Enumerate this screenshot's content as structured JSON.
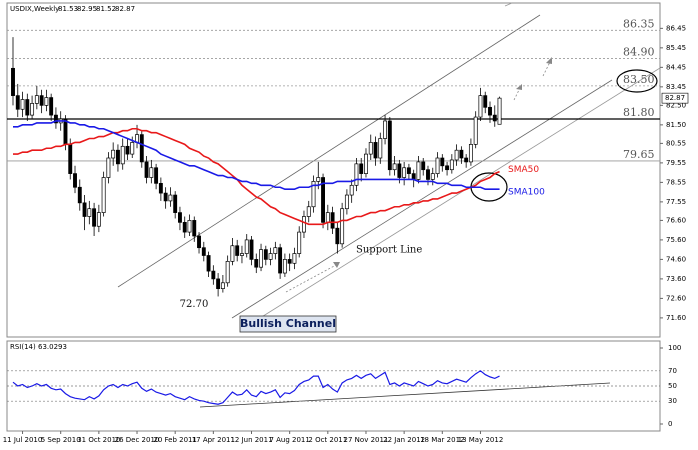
{
  "chart_data": {
    "type": "candlestick",
    "title": "USDIX,Weekly",
    "x": [
      null,
      null,
      "11 Jul 2010",
      null,
      null,
      null,
      null,
      null,
      null,
      null,
      "5 Sep 2010",
      null,
      null,
      null,
      null,
      null,
      null,
      null,
      "31 Oct 2010",
      null,
      null,
      null,
      null,
      null,
      null,
      null,
      "26 Dec 2010",
      null,
      null,
      null,
      null,
      null,
      null,
      null,
      "20 Feb 2011",
      null,
      null,
      null,
      null,
      null,
      null,
      null,
      "17 Apr 2011",
      null,
      null,
      null,
      null,
      null,
      null,
      null,
      "12 Jun 2011",
      null,
      null,
      null,
      null,
      null,
      null,
      null,
      "7 Aug 2011",
      null,
      null,
      null,
      null,
      null,
      null,
      null,
      "2 Oct 2011",
      null,
      null,
      null,
      null,
      null,
      null,
      null,
      "27 Nov 2011",
      null,
      null,
      null,
      null,
      null,
      null,
      null,
      "22 Jan 2012",
      null,
      null,
      null,
      null,
      null,
      null,
      null,
      "18 Mar 2012",
      null,
      null,
      null,
      null,
      null,
      null,
      null,
      "13 May 2012",
      null,
      null,
      null,
      null
    ],
    "candles": [
      [
        84.4,
        86.0,
        82.5,
        83.0
      ],
      [
        83.0,
        83.6,
        81.9,
        82.3
      ],
      [
        82.3,
        83.2,
        81.9,
        82.8
      ],
      [
        82.8,
        83.1,
        81.7,
        82.0
      ],
      [
        82.0,
        83.0,
        81.8,
        82.6
      ],
      [
        82.6,
        83.5,
        82.3,
        83.0
      ],
      [
        83.0,
        83.3,
        82.1,
        82.5
      ],
      [
        82.5,
        83.3,
        82.2,
        82.9
      ],
      [
        82.9,
        83.1,
        81.7,
        82.0
      ],
      [
        82.0,
        82.4,
        81.3,
        81.6
      ],
      [
        81.6,
        82.2,
        81.2,
        81.8
      ],
      [
        81.8,
        82.0,
        80.2,
        80.5
      ],
      [
        80.5,
        80.8,
        78.7,
        79.0
      ],
      [
        79.0,
        79.4,
        78.0,
        78.3
      ],
      [
        78.3,
        78.7,
        77.1,
        77.5
      ],
      [
        77.5,
        77.9,
        76.1,
        76.8
      ],
      [
        76.8,
        77.6,
        76.4,
        77.2
      ],
      [
        77.2,
        77.5,
        75.8,
        76.3
      ],
      [
        76.3,
        77.4,
        76.0,
        77.0
      ],
      [
        77.0,
        79.1,
        76.8,
        78.8
      ],
      [
        78.8,
        80.1,
        78.5,
        79.8
      ],
      [
        79.8,
        80.6,
        79.4,
        80.2
      ],
      [
        80.2,
        80.5,
        79.1,
        79.5
      ],
      [
        79.5,
        80.8,
        79.2,
        80.4
      ],
      [
        80.4,
        80.8,
        79.7,
        80.0
      ],
      [
        80.0,
        80.9,
        79.8,
        80.6
      ],
      [
        80.6,
        81.5,
        80.3,
        81.0
      ],
      [
        81.0,
        81.2,
        79.3,
        79.6
      ],
      [
        79.6,
        79.9,
        78.5,
        78.8
      ],
      [
        78.8,
        79.7,
        78.5,
        79.3
      ],
      [
        79.3,
        79.5,
        78.2,
        78.5
      ],
      [
        78.5,
        78.8,
        77.6,
        78.0
      ],
      [
        78.0,
        78.3,
        77.2,
        77.6
      ],
      [
        77.6,
        78.3,
        77.3,
        77.9
      ],
      [
        77.9,
        78.1,
        76.7,
        77.0
      ],
      [
        77.0,
        77.3,
        76.1,
        76.5
      ],
      [
        76.5,
        76.8,
        75.7,
        76.0
      ],
      [
        76.0,
        76.9,
        75.8,
        76.6
      ],
      [
        76.6,
        76.8,
        75.5,
        75.8
      ],
      [
        75.8,
        76.0,
        74.9,
        75.2
      ],
      [
        75.2,
        75.5,
        74.5,
        74.8
      ],
      [
        74.8,
        75.0,
        73.7,
        74.0
      ],
      [
        74.0,
        74.3,
        73.3,
        73.6
      ],
      [
        73.6,
        73.9,
        72.7,
        73.1
      ],
      [
        73.1,
        73.8,
        72.9,
        73.4
      ],
      [
        73.4,
        74.8,
        73.2,
        74.5
      ],
      [
        74.5,
        75.7,
        74.3,
        75.3
      ],
      [
        75.3,
        75.6,
        74.5,
        74.8
      ],
      [
        74.8,
        75.3,
        74.4,
        74.9
      ],
      [
        74.9,
        75.9,
        74.7,
        75.6
      ],
      [
        75.6,
        75.8,
        74.3,
        74.6
      ],
      [
        74.6,
        74.9,
        73.9,
        74.2
      ],
      [
        74.2,
        75.4,
        74.0,
        75.1
      ],
      [
        75.1,
        75.3,
        74.3,
        74.6
      ],
      [
        74.6,
        75.2,
        74.3,
        74.9
      ],
      [
        74.9,
        75.5,
        74.6,
        75.2
      ],
      [
        75.2,
        75.4,
        73.6,
        73.9
      ],
      [
        73.9,
        74.9,
        73.7,
        74.6
      ],
      [
        74.6,
        74.9,
        74.0,
        74.4
      ],
      [
        74.4,
        75.2,
        74.1,
        74.9
      ],
      [
        74.9,
        76.3,
        74.7,
        76.0
      ],
      [
        76.0,
        77.1,
        75.7,
        76.8
      ],
      [
        76.8,
        77.6,
        76.5,
        77.3
      ],
      [
        77.3,
        78.9,
        77.0,
        78.6
      ],
      [
        78.6,
        79.6,
        78.2,
        78.8
      ],
      [
        78.8,
        79.0,
        76.2,
        76.5
      ],
      [
        76.5,
        77.4,
        76.1,
        77.0
      ],
      [
        77.0,
        77.3,
        75.9,
        76.2
      ],
      [
        76.2,
        76.5,
        74.9,
        75.4
      ],
      [
        75.4,
        77.5,
        75.2,
        77.2
      ],
      [
        77.2,
        78.2,
        76.9,
        77.9
      ],
      [
        77.9,
        78.7,
        77.5,
        78.4
      ],
      [
        78.4,
        79.8,
        78.1,
        79.5
      ],
      [
        79.5,
        79.8,
        78.6,
        79.0
      ],
      [
        79.0,
        80.3,
        78.8,
        80.0
      ],
      [
        80.0,
        81.0,
        79.7,
        80.6
      ],
      [
        80.6,
        80.9,
        79.4,
        79.8
      ],
      [
        79.8,
        81.1,
        79.5,
        80.8
      ],
      [
        80.8,
        82.0,
        80.5,
        81.7
      ],
      [
        81.7,
        81.9,
        78.9,
        79.2
      ],
      [
        79.2,
        79.9,
        78.9,
        79.5
      ],
      [
        79.5,
        79.7,
        78.5,
        78.8
      ],
      [
        78.8,
        79.6,
        78.4,
        79.3
      ],
      [
        79.3,
        79.5,
        78.7,
        79.0
      ],
      [
        79.0,
        79.2,
        78.3,
        78.7
      ],
      [
        78.7,
        79.9,
        78.5,
        79.6
      ],
      [
        79.6,
        79.8,
        78.9,
        79.2
      ],
      [
        79.2,
        79.4,
        78.4,
        78.7
      ],
      [
        78.7,
        79.3,
        78.4,
        79.0
      ],
      [
        79.0,
        80.1,
        78.8,
        79.8
      ],
      [
        79.8,
        80.0,
        79.1,
        79.4
      ],
      [
        79.4,
        79.6,
        78.9,
        79.2
      ],
      [
        79.2,
        80.0,
        79.0,
        79.7
      ],
      [
        79.7,
        80.5,
        79.4,
        80.2
      ],
      [
        80.2,
        80.4,
        79.5,
        79.8
      ],
      [
        79.8,
        80.0,
        79.3,
        79.6
      ],
      [
        79.6,
        80.8,
        79.4,
        80.5
      ],
      [
        80.5,
        82.2,
        80.3,
        81.9
      ],
      [
        81.9,
        83.4,
        81.7,
        83.0
      ],
      [
        83.0,
        83.2,
        82.1,
        82.4
      ],
      [
        82.4,
        82.7,
        81.6,
        82.0
      ],
      [
        82.0,
        82.5,
        81.4,
        81.7
      ],
      [
        81.53,
        82.95,
        81.52,
        82.87
      ]
    ],
    "ylim": [
      70.62,
      87.75
    ],
    "yticks": [
      {
        "value": 71.6,
        "label": "71.60"
      },
      {
        "value": 72.6,
        "label": "72.60"
      },
      {
        "value": 73.6,
        "label": "73.60"
      },
      {
        "value": 74.6,
        "label": "74.60"
      },
      {
        "value": 75.6,
        "label": "75.60"
      },
      {
        "value": 76.6,
        "label": "76.60"
      },
      77.55,
      78.55,
      79.55,
      80.55,
      {
        "value": 81.5,
        "label": "81.50"
      },
      {
        "value": 82.5,
        "label": "82.50"
      },
      83.45,
      84.45,
      85.45,
      86.45
    ],
    "series": [
      {
        "name": "SMA50",
        "color": "#e8191a",
        "values": [
          80.0,
          80.0,
          80.1,
          80.1,
          80.2,
          80.2,
          80.2,
          80.3,
          80.3,
          80.4,
          80.4,
          80.5,
          80.5,
          80.6,
          80.6,
          80.7,
          80.8,
          80.8,
          80.9,
          80.9,
          81.0,
          81.1,
          81.1,
          81.2,
          81.2,
          81.3,
          81.3,
          81.2,
          81.2,
          81.1,
          81.1,
          81.0,
          80.9,
          80.8,
          80.7,
          80.6,
          80.5,
          80.3,
          80.2,
          80.1,
          79.9,
          79.8,
          79.6,
          79.5,
          79.3,
          79.1,
          78.9,
          78.7,
          78.4,
          78.2,
          78.0,
          77.8,
          77.7,
          77.5,
          77.3,
          77.2,
          77.0,
          76.9,
          76.8,
          76.7,
          76.6,
          76.5,
          76.4,
          76.4,
          76.4,
          76.4,
          76.5,
          76.5,
          76.5,
          76.6,
          76.6,
          76.7,
          76.8,
          76.8,
          76.9,
          77.0,
          77.0,
          77.1,
          77.1,
          77.2,
          77.3,
          77.3,
          77.4,
          77.4,
          77.5,
          77.5,
          77.6,
          77.6,
          77.7,
          77.7,
          77.8,
          77.9,
          78.0,
          78.0,
          78.1,
          78.2,
          78.3,
          78.4,
          78.6,
          78.7,
          78.8,
          79.0,
          79.1
        ]
      },
      {
        "name": "SMA100",
        "color": "#1a1ae6",
        "values": [
          81.4,
          81.4,
          81.5,
          81.5,
          81.5,
          81.6,
          81.6,
          81.6,
          81.6,
          81.7,
          81.7,
          81.7,
          81.6,
          81.6,
          81.5,
          81.5,
          81.4,
          81.4,
          81.3,
          81.3,
          81.2,
          81.1,
          81.0,
          80.9,
          80.8,
          80.7,
          80.6,
          80.5,
          80.4,
          80.3,
          80.2,
          80.0,
          79.9,
          79.8,
          79.7,
          79.6,
          79.5,
          79.4,
          79.4,
          79.3,
          79.2,
          79.1,
          79.0,
          78.9,
          78.9,
          78.8,
          78.8,
          78.7,
          78.6,
          78.6,
          78.5,
          78.5,
          78.4,
          78.4,
          78.4,
          78.3,
          78.3,
          78.2,
          78.2,
          78.2,
          78.3,
          78.3,
          78.3,
          78.4,
          78.4,
          78.5,
          78.5,
          78.5,
          78.6,
          78.6,
          78.6,
          78.6,
          78.7,
          78.7,
          78.7,
          78.7,
          78.7,
          78.7,
          78.7,
          78.7,
          78.7,
          78.7,
          78.7,
          78.7,
          78.7,
          78.6,
          78.6,
          78.6,
          78.6,
          78.5,
          78.5,
          78.5,
          78.4,
          78.4,
          78.4,
          78.3,
          78.3,
          78.3,
          78.3,
          78.2,
          78.2,
          78.2,
          78.2
        ]
      }
    ],
    "levels": [
      86.35,
      {
        "value": 84.9,
        "label": "84.90"
      },
      {
        "value": 83.5,
        "label": "83.50"
      },
      {
        "value": 81.8,
        "label": "81.80"
      },
      79.65
    ],
    "low_label": {
      "value": 72.7,
      "label": "72.70"
    },
    "support_label": "Support Line",
    "channel_label": "Bullish Channel",
    "rsi": {
      "title": "RSI(14)",
      "color": "#1a1ae6",
      "ylim": [
        0,
        100
      ],
      "yticks": [
        0,
        30,
        50,
        70,
        100
      ],
      "values": [
        55,
        50,
        52,
        48,
        50,
        53,
        50,
        52,
        47,
        45,
        46,
        40,
        36,
        34,
        33,
        32,
        36,
        33,
        37,
        45,
        50,
        52,
        48,
        52,
        50,
        53,
        55,
        47,
        43,
        46,
        42,
        40,
        38,
        40,
        36,
        34,
        32,
        36,
        33,
        31,
        30,
        28,
        27,
        26,
        28,
        35,
        42,
        38,
        39,
        45,
        38,
        36,
        43,
        40,
        42,
        45,
        35,
        41,
        40,
        44,
        52,
        56,
        58,
        63,
        63,
        48,
        52,
        46,
        42,
        54,
        58,
        60,
        64,
        60,
        64,
        66,
        60,
        64,
        68,
        52,
        54,
        50,
        54,
        52,
        50,
        56,
        53,
        50,
        52,
        57,
        54,
        53,
        56,
        59,
        57,
        55,
        61,
        66,
        70,
        65,
        62,
        60,
        63.0293
      ]
    }
  }
}
